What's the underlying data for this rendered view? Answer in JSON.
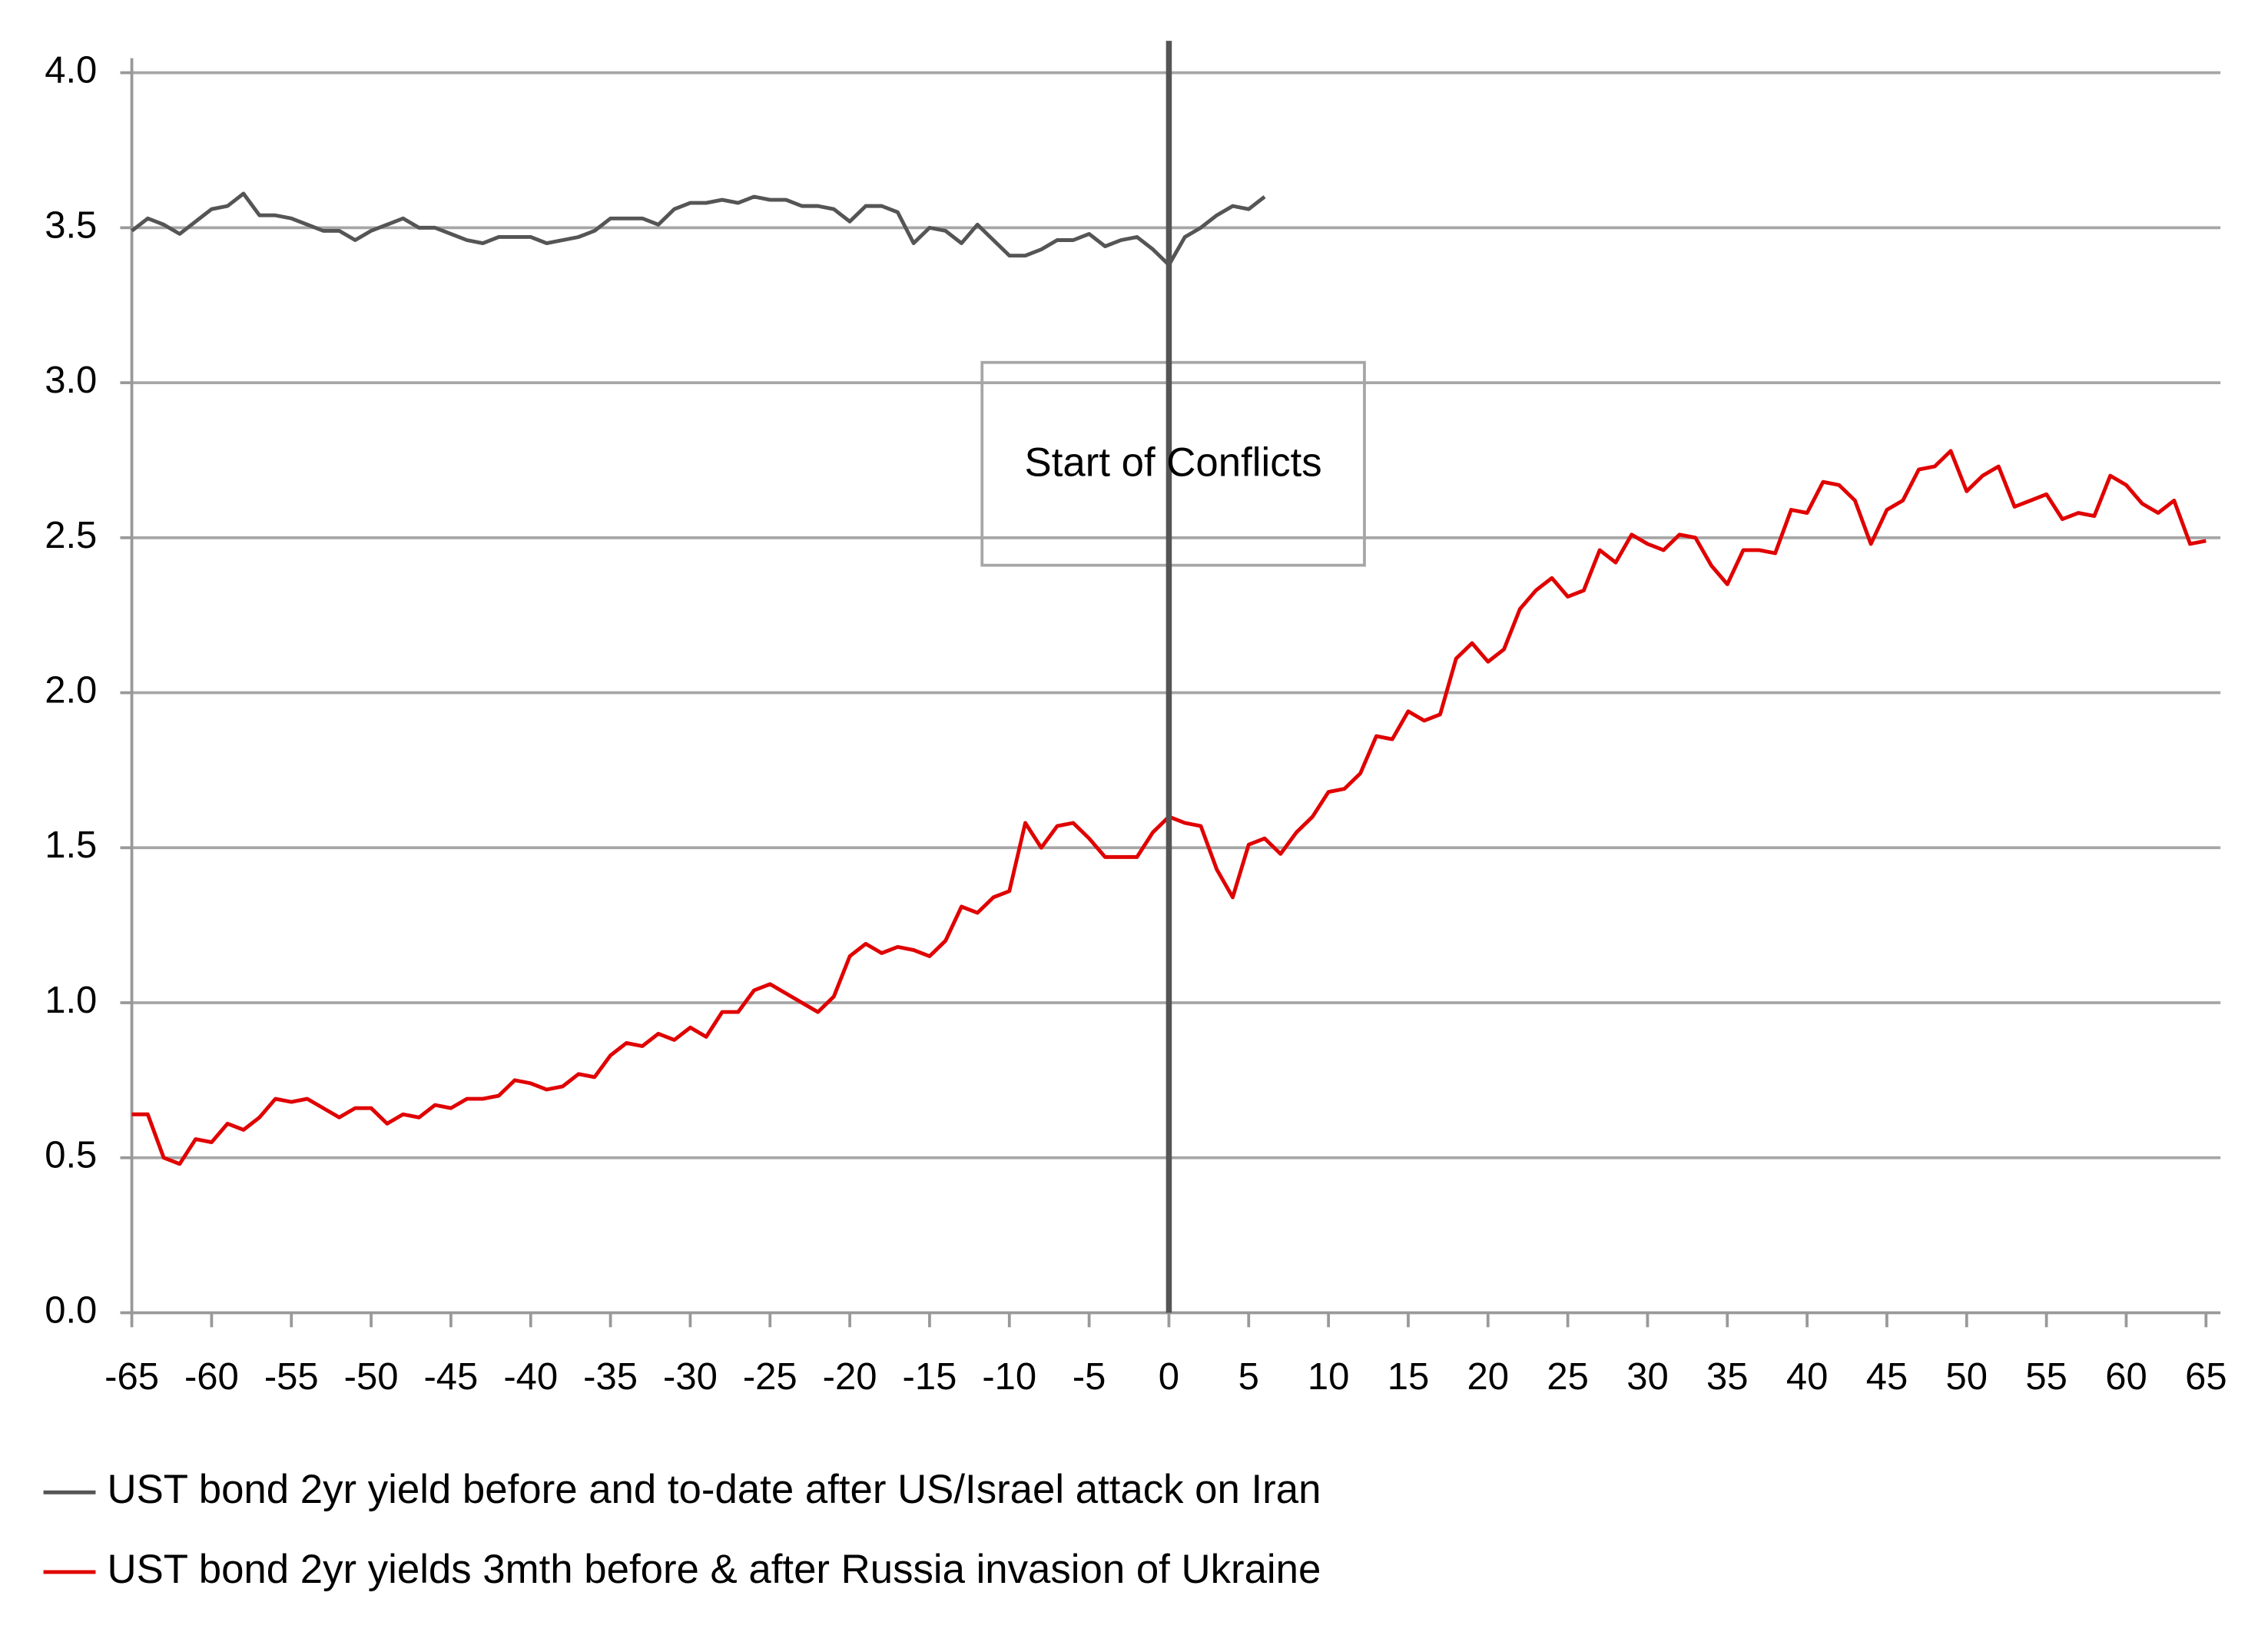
{
  "chart_data": {
    "type": "line",
    "annotation": "Start of Conflicts",
    "vline": 0,
    "x": [
      -65,
      -64,
      -63,
      -62,
      -61,
      -60,
      -59,
      -58,
      -57,
      -56,
      -55,
      -54,
      -53,
      -52,
      -51,
      -50,
      -49,
      -48,
      -47,
      -46,
      -45,
      -44,
      -43,
      -42,
      -41,
      -40,
      -39,
      -38,
      -37,
      -36,
      -35,
      -34,
      -33,
      -32,
      -31,
      -30,
      -29,
      -28,
      -27,
      -26,
      -25,
      -24,
      -23,
      -22,
      -21,
      -20,
      -19,
      -18,
      -17,
      -16,
      -15,
      -14,
      -13,
      -12,
      -11,
      -10,
      -9,
      -8,
      -7,
      -6,
      -5,
      -4,
      -3,
      -2,
      -1,
      0,
      1,
      2,
      3,
      4,
      5,
      6,
      7,
      8,
      9,
      10,
      11,
      12,
      13,
      14,
      15,
      16,
      17,
      18,
      19,
      20,
      21,
      22,
      23,
      24,
      25,
      26,
      27,
      28,
      29,
      30,
      31,
      32,
      33,
      34,
      35,
      36,
      37,
      38,
      39,
      40,
      41,
      42,
      43,
      44,
      45,
      46,
      47,
      48,
      49,
      50,
      51,
      52,
      53,
      54,
      55,
      56,
      57,
      58,
      59,
      60,
      61,
      62,
      63,
      64,
      65
    ],
    "series": [
      {
        "name": "UST bond 2yr yield before and to-date after US/Israel attack on Iran",
        "color": "#555555",
        "values": [
          3.49,
          3.53,
          3.51,
          3.48,
          3.52,
          3.56,
          3.57,
          3.61,
          3.54,
          3.54,
          3.53,
          3.51,
          3.49,
          3.49,
          3.46,
          3.49,
          3.51,
          3.53,
          3.5,
          3.5,
          3.48,
          3.46,
          3.45,
          3.47,
          3.47,
          3.47,
          3.45,
          3.46,
          3.47,
          3.49,
          3.53,
          3.53,
          3.53,
          3.51,
          3.56,
          3.58,
          3.58,
          3.59,
          3.58,
          3.6,
          3.59,
          3.59,
          3.57,
          3.57,
          3.56,
          3.52,
          3.57,
          3.57,
          3.55,
          3.45,
          3.5,
          3.49,
          3.45,
          3.51,
          3.46,
          3.41,
          3.41,
          3.43,
          3.46,
          3.46,
          3.48,
          3.44,
          3.46,
          3.47,
          3.43,
          3.38,
          3.47,
          3.5,
          3.54,
          3.57,
          3.56,
          3.6,
          null,
          null,
          null,
          null,
          null,
          null,
          null,
          null,
          null,
          null,
          null,
          null,
          null,
          null,
          null,
          null,
          null,
          null,
          null,
          null,
          null,
          null,
          null,
          null,
          null,
          null,
          null,
          null,
          null,
          null,
          null,
          null,
          null,
          null,
          null,
          null,
          null,
          null,
          null,
          null,
          null,
          null,
          null,
          null,
          null,
          null,
          null,
          null,
          null,
          null,
          null,
          null,
          null,
          null,
          null,
          null,
          null,
          null,
          null
        ]
      },
      {
        "name": "UST bond 2yr yields 3mth before & after Russia invasion of Ukraine",
        "color": "#e00000",
        "values": [
          0.64,
          0.64,
          0.5,
          0.48,
          0.56,
          0.55,
          0.61,
          0.59,
          0.63,
          0.69,
          0.68,
          0.69,
          0.66,
          0.63,
          0.66,
          0.66,
          0.61,
          0.64,
          0.63,
          0.67,
          0.66,
          0.69,
          0.69,
          0.7,
          0.75,
          0.74,
          0.72,
          0.73,
          0.77,
          0.76,
          0.83,
          0.87,
          0.86,
          0.9,
          0.88,
          0.92,
          0.89,
          0.97,
          0.97,
          1.04,
          1.06,
          1.03,
          1.0,
          0.97,
          1.02,
          1.15,
          1.19,
          1.16,
          1.18,
          1.17,
          1.15,
          1.2,
          1.31,
          1.29,
          1.34,
          1.36,
          1.58,
          1.5,
          1.57,
          1.58,
          1.53,
          1.47,
          1.47,
          1.47,
          1.55,
          1.6,
          1.58,
          1.57,
          1.43,
          1.34,
          1.51,
          1.53,
          1.48,
          1.55,
          1.6,
          1.68,
          1.69,
          1.74,
          1.86,
          1.85,
          1.94,
          1.91,
          1.93,
          2.11,
          2.16,
          2.1,
          2.14,
          2.27,
          2.33,
          2.37,
          2.31,
          2.33,
          2.46,
          2.42,
          2.51,
          2.48,
          2.46,
          2.51,
          2.5,
          2.41,
          2.35,
          2.46,
          2.46,
          2.45,
          2.59,
          2.58,
          2.68,
          2.67,
          2.62,
          2.48,
          2.59,
          2.62,
          2.72,
          2.73,
          2.78,
          2.65,
          2.7,
          2.73,
          2.6,
          2.62,
          2.64,
          2.56,
          2.58,
          2.57,
          2.7,
          2.67,
          2.61,
          2.58,
          2.62,
          2.48,
          2.49
        ]
      }
    ],
    "xlim": [
      -65,
      65
    ],
    "xticks": [
      -65,
      -60,
      -55,
      -50,
      -45,
      -40,
      -35,
      -30,
      -25,
      -20,
      -15,
      -10,
      -5,
      0,
      5,
      10,
      15,
      20,
      25,
      30,
      35,
      40,
      45,
      50,
      55,
      60,
      65
    ],
    "ylim": [
      0,
      4
    ],
    "yticks": [
      {
        "value": 0,
        "label": "0.0"
      },
      {
        "value": 0.5,
        "label": "0.5"
      },
      {
        "value": 1,
        "label": "1.0"
      },
      {
        "value": 1.5,
        "label": "1.5"
      },
      {
        "value": 2,
        "label": "2.0"
      },
      {
        "value": 2.5,
        "label": "2.5"
      },
      {
        "value": 3,
        "label": "3.0"
      },
      {
        "value": 3.5,
        "label": "3.5"
      },
      {
        "value": 4,
        "label": "4.0"
      }
    ],
    "grid": true
  }
}
